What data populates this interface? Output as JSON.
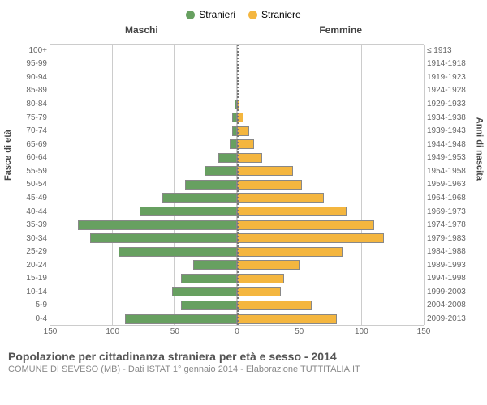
{
  "chart": {
    "type": "population-pyramid",
    "legend": [
      {
        "label": "Stranieri",
        "color": "#67a060"
      },
      {
        "label": "Straniere",
        "color": "#f4b63f"
      }
    ],
    "side_titles": {
      "left": "Maschi",
      "right": "Femmine"
    },
    "axis_titles": {
      "left": "Fasce di età",
      "right": "Anni di nascita"
    },
    "xlim": [
      0,
      150
    ],
    "xtick_step": 50,
    "xticks": [
      0,
      50,
      100,
      150
    ],
    "grid_color": "#cccccc",
    "bar_border_color": "#888888",
    "male_color": "#67a060",
    "female_color": "#f4b63f",
    "rows": [
      {
        "age": "100+",
        "birth": "≤ 1913",
        "m": 0,
        "f": 0
      },
      {
        "age": "95-99",
        "birth": "1914-1918",
        "m": 0,
        "f": 0
      },
      {
        "age": "90-94",
        "birth": "1919-1923",
        "m": 0,
        "f": 0
      },
      {
        "age": "85-89",
        "birth": "1924-1928",
        "m": 0,
        "f": 0
      },
      {
        "age": "80-84",
        "birth": "1929-1933",
        "m": 2,
        "f": 2
      },
      {
        "age": "75-79",
        "birth": "1934-1938",
        "m": 4,
        "f": 5
      },
      {
        "age": "70-74",
        "birth": "1939-1943",
        "m": 4,
        "f": 10
      },
      {
        "age": "65-69",
        "birth": "1944-1948",
        "m": 6,
        "f": 14
      },
      {
        "age": "60-64",
        "birth": "1949-1953",
        "m": 15,
        "f": 20
      },
      {
        "age": "55-59",
        "birth": "1954-1958",
        "m": 26,
        "f": 45
      },
      {
        "age": "50-54",
        "birth": "1959-1963",
        "m": 42,
        "f": 52
      },
      {
        "age": "45-49",
        "birth": "1964-1968",
        "m": 60,
        "f": 70
      },
      {
        "age": "40-44",
        "birth": "1969-1973",
        "m": 78,
        "f": 88
      },
      {
        "age": "35-39",
        "birth": "1974-1978",
        "m": 128,
        "f": 110
      },
      {
        "age": "30-34",
        "birth": "1979-1983",
        "m": 118,
        "f": 118
      },
      {
        "age": "25-29",
        "birth": "1984-1988",
        "m": 95,
        "f": 85
      },
      {
        "age": "20-24",
        "birth": "1989-1993",
        "m": 35,
        "f": 50
      },
      {
        "age": "15-19",
        "birth": "1994-1998",
        "m": 45,
        "f": 38
      },
      {
        "age": "10-14",
        "birth": "1999-2003",
        "m": 52,
        "f": 35
      },
      {
        "age": "5-9",
        "birth": "2004-2008",
        "m": 45,
        "f": 60
      },
      {
        "age": "0-4",
        "birth": "2009-2013",
        "m": 90,
        "f": 80
      }
    ]
  },
  "footer": {
    "title": "Popolazione per cittadinanza straniera per età e sesso - 2014",
    "subtitle": "COMUNE DI SEVESO (MB) - Dati ISTAT 1° gennaio 2014 - Elaborazione TUTTITALIA.IT"
  }
}
